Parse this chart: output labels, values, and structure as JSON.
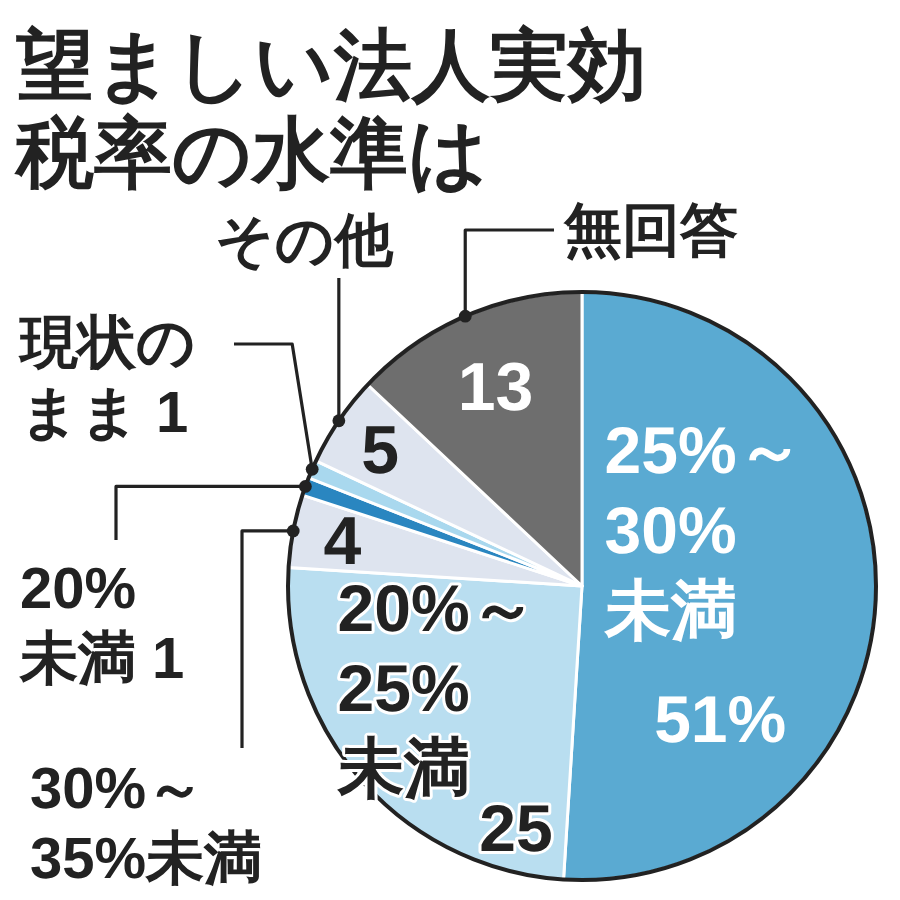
{
  "chart_data": {
    "type": "pie",
    "title": "望ましい法人実効税率の水準は",
    "categories": [
      "25%～30%未満",
      "20%～25%未満",
      "30%～35%未満",
      "20%未満",
      "現状のまま",
      "その他",
      "無回答"
    ],
    "values": [
      51,
      25,
      4,
      1,
      1,
      5,
      13
    ],
    "colors": [
      "#5aaad2",
      "#b9def0",
      "#dee4ef",
      "#2a86c0",
      "#a9d8ee",
      "#dee4ef",
      "#6e6e6e"
    ],
    "value_labels": [
      "51%",
      "25",
      "4",
      "1",
      "1",
      "5",
      "13"
    ]
  }
}
